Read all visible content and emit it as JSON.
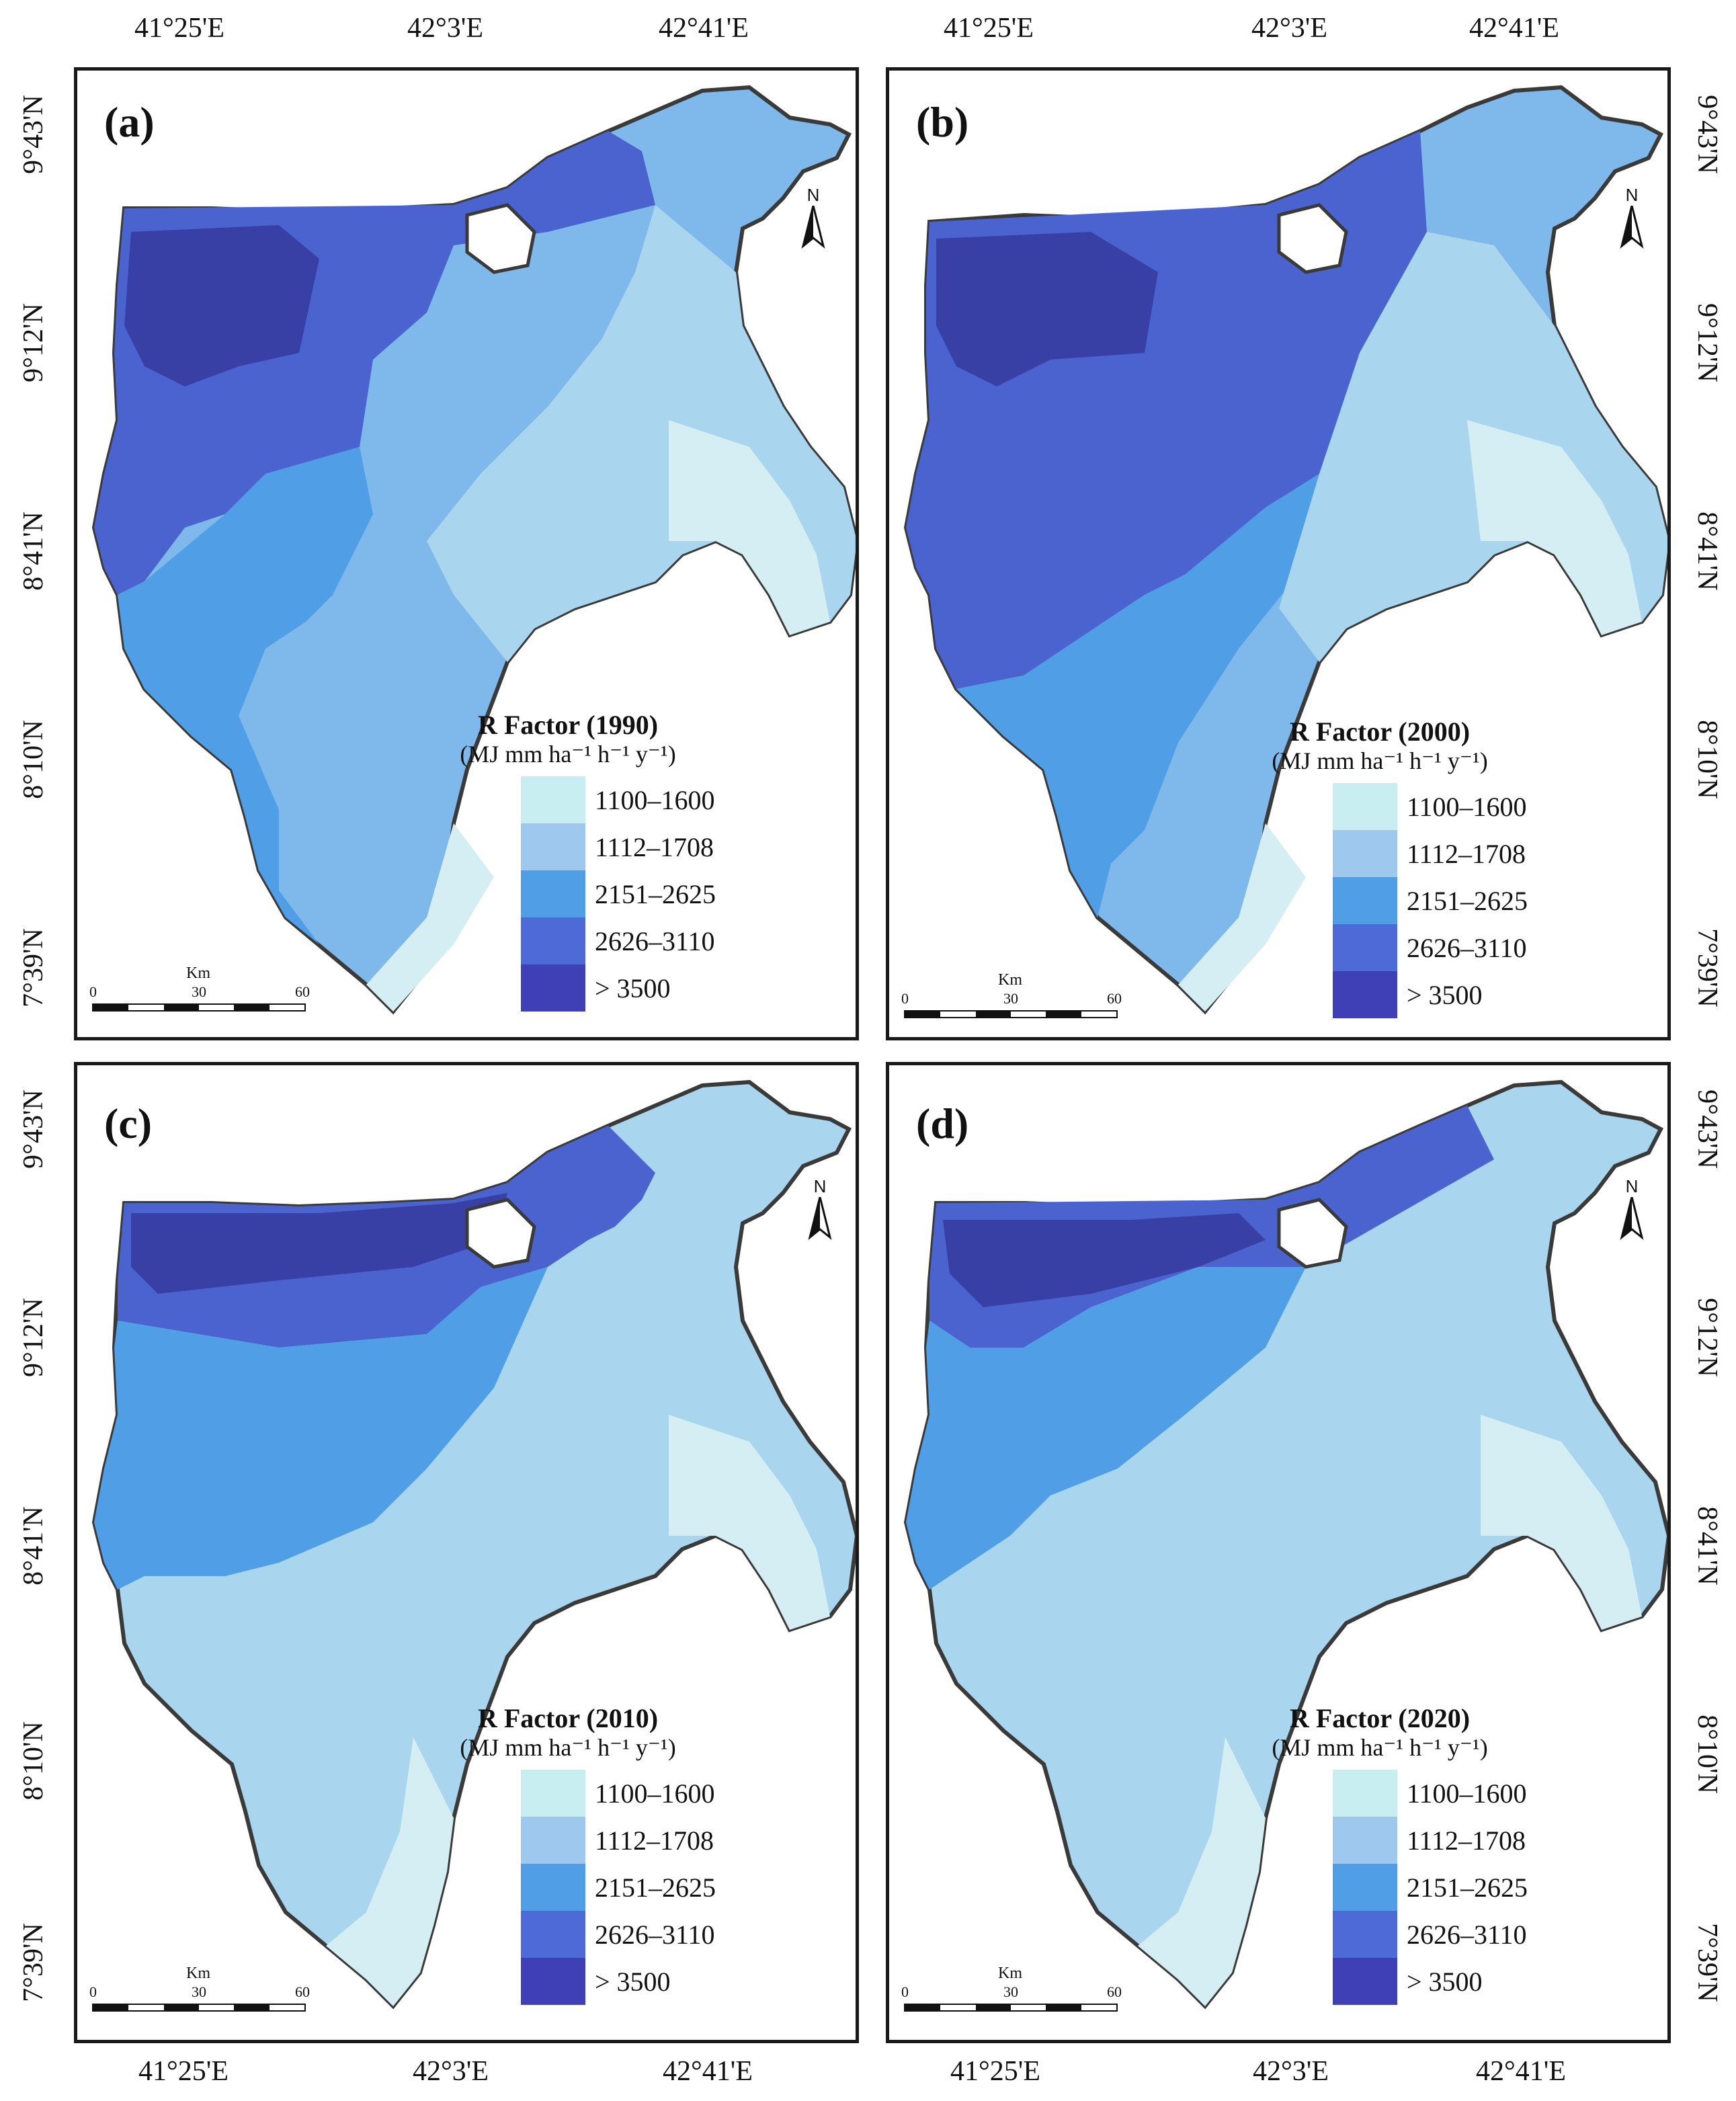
{
  "axes": {
    "longitude_ticks": [
      "41°25'E",
      "42°3'E",
      "42°41'E"
    ],
    "latitude_ticks_top": [
      "9°43'N",
      "9°12'N",
      "8°41'N",
      "8°10'N",
      "7°39'N"
    ],
    "latitude_ticks_bottom": [
      "9°43'N",
      "9°12'N",
      "8°41'N",
      "8°10'N",
      "7°39'N"
    ]
  },
  "legend_classes": [
    {
      "label": "1100–1600",
      "color": "#c8eef2"
    },
    {
      "label": "1112–1708",
      "color": "#9ec8ee"
    },
    {
      "label": "2151–2625",
      "color": "#4f9ee6"
    },
    {
      "label": "2626–3110",
      "color": "#4d6ad6"
    },
    {
      "label": "> 3500",
      "color": "#3f3fb6"
    }
  ],
  "legend_unit": "(MJ mm ha⁻¹ h⁻¹ y⁻¹)",
  "panels": [
    {
      "label": "(a)",
      "legend_title": "R Factor (1990)"
    },
    {
      "label": "(b)",
      "legend_title": "R Factor (2000)"
    },
    {
      "label": "(c)",
      "legend_title": "R Factor (2010)"
    },
    {
      "label": "(d)",
      "legend_title": "R Factor (2020)"
    }
  ],
  "scalebar": {
    "unit": "Km",
    "ticks": [
      "0",
      "30",
      "60"
    ]
  },
  "north_arrow": {
    "letter": "N",
    "icon": "north-arrow-icon"
  }
}
